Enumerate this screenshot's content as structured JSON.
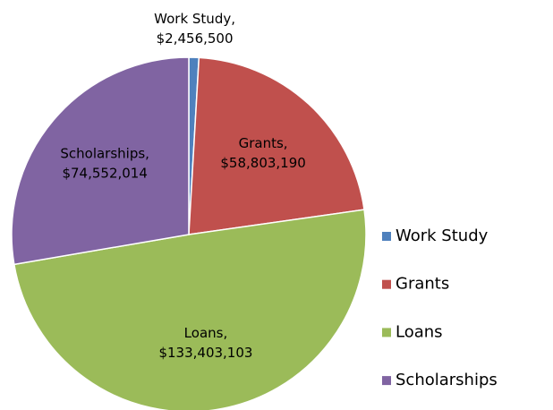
{
  "chart_data": {
    "type": "pie",
    "categories": [
      "Work Study",
      "Grants",
      "Loans",
      "Scholarships"
    ],
    "label_names": [
      "Work Study,",
      "Grants,",
      "Loans,",
      "Scholarships,"
    ],
    "values": [
      2456500,
      58803190,
      133403103,
      74552014
    ],
    "value_labels": [
      "$2,456,500",
      "$58,803,190",
      "$133,403,103",
      "$74,552,014"
    ],
    "colors": [
      "#4f81bd",
      "#c0504d",
      "#9bbb59",
      "#8064a2"
    ],
    "legend": "right"
  }
}
